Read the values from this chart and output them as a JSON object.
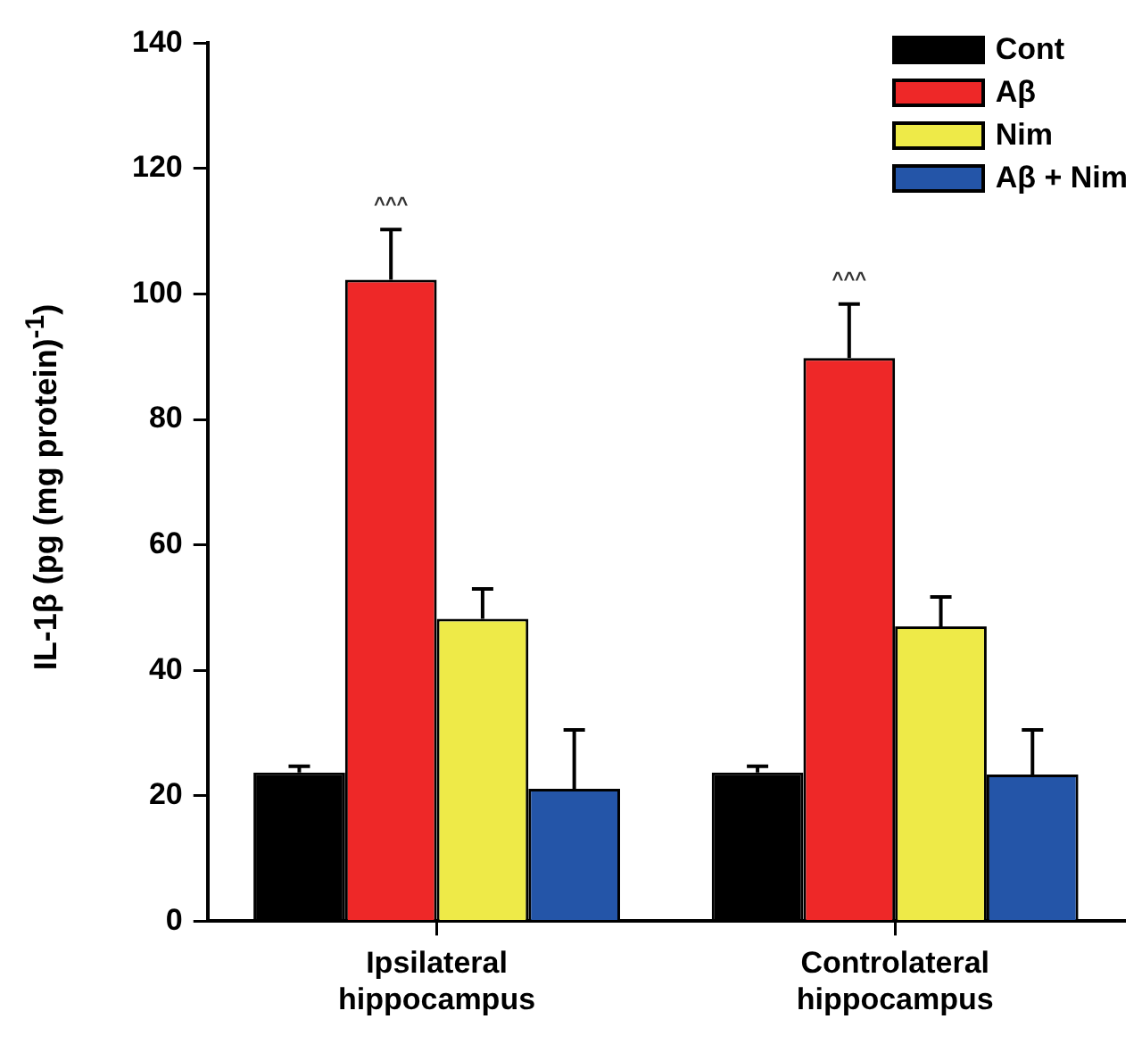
{
  "chart_data": {
    "type": "bar",
    "ylabel": "IL-1β (pg (mg protein)$^{-1}$)",
    "categories": [
      "Ipsilateral hippocampus",
      "Controlateral hippocampus"
    ],
    "series": [
      {
        "name": "Cont",
        "color": "#000000",
        "values": [
          23.7,
          23.7
        ],
        "errors": [
          [
            23.7,
            24.7
          ],
          [
            23.7,
            24.7
          ]
        ]
      },
      {
        "name": "Aβ",
        "color": "#ee2828",
        "values": [
          102.3,
          89.8
        ],
        "errors": [
          [
            102.3,
            110.3
          ],
          [
            89.8,
            98.4
          ]
        ]
      },
      {
        "name": "Nim",
        "color": "#eeea48",
        "values": [
          48.2,
          47
        ],
        "errors": [
          [
            48.2,
            53
          ],
          [
            47,
            51.7
          ]
        ]
      },
      {
        "name": "Aβ + Nim",
        "color": "#2455a8",
        "values": [
          21.1,
          23.4
        ],
        "errors": [
          [
            21.1,
            30.5
          ],
          [
            23.4,
            30.5
          ]
        ]
      }
    ],
    "annotations": [
      "^^^",
      "^^^"
    ],
    "ylim": [
      0,
      140
    ],
    "yticks": [
      0,
      20,
      40,
      60,
      80,
      100,
      120,
      140
    ],
    "grid": false,
    "legend": "top right"
  }
}
